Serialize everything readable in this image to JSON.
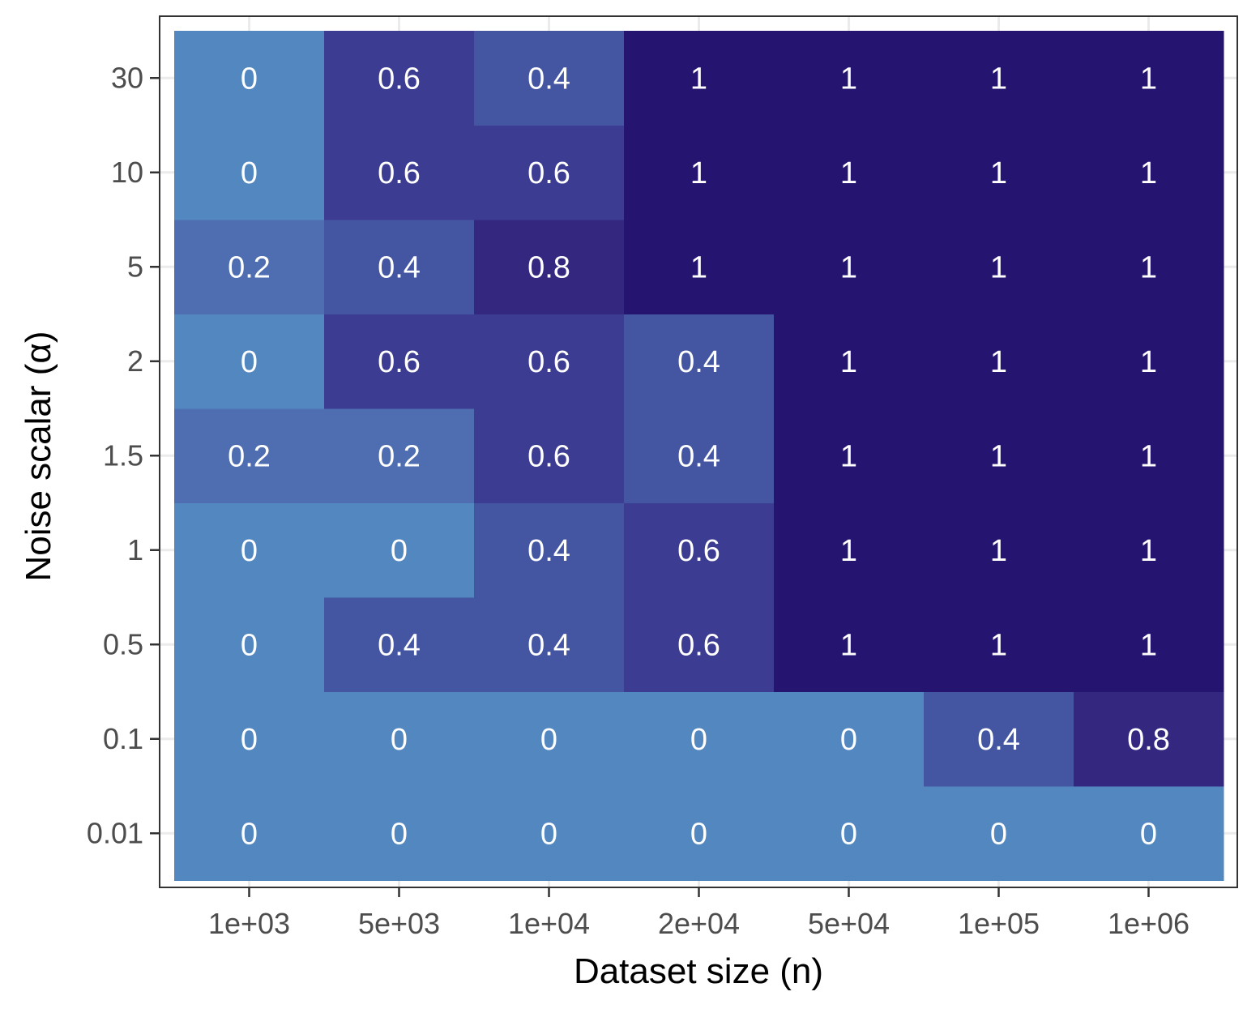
{
  "chart_data": {
    "type": "heatmap",
    "xlabel": "Dataset size (n)",
    "ylabel": "Noise scalar (α)",
    "x_categories": [
      "1e+03",
      "5e+03",
      "1e+04",
      "2e+04",
      "5e+04",
      "1e+05",
      "1e+06"
    ],
    "y_categories": [
      "0.01",
      "0.1",
      "0.5",
      "1",
      "1.5",
      "2",
      "5",
      "10",
      "30"
    ],
    "values": [
      [
        0,
        0,
        0,
        0,
        0,
        0,
        0
      ],
      [
        0,
        0,
        0,
        0,
        0,
        0.4,
        0.8
      ],
      [
        0,
        0.4,
        0.4,
        0.6,
        1,
        1,
        1
      ],
      [
        0,
        0,
        0.4,
        0.6,
        1,
        1,
        1
      ],
      [
        0.2,
        0.2,
        0.6,
        0.4,
        1,
        1,
        1
      ],
      [
        0,
        0.6,
        0.6,
        0.4,
        1,
        1,
        1
      ],
      [
        0.2,
        0.4,
        0.8,
        1,
        1,
        1,
        1
      ],
      [
        0,
        0.6,
        0.6,
        1,
        1,
        1,
        1
      ],
      [
        0,
        0.6,
        0.4,
        1,
        1,
        1,
        1
      ]
    ],
    "value_range": [
      0,
      1
    ],
    "legend": "none",
    "grid": true
  },
  "colors": {
    "scale": [
      "#5387c0",
      "#4e6eb1",
      "#4456a2",
      "#3c3c92",
      "#33277f",
      "#261471"
    ],
    "grid": "#ebebeb",
    "panel_border": "#333333",
    "cell_text": "#ffffff"
  }
}
